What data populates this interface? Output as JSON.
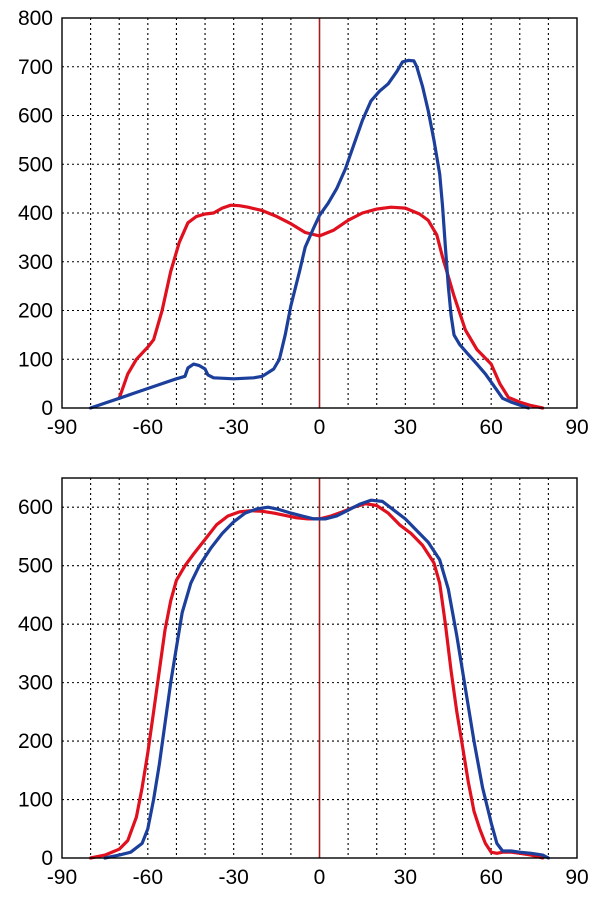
{
  "colors": {
    "red": "#e0101e",
    "blue": "#1c3f9c",
    "zero_line": "#a31e1e",
    "grid": "#000000"
  },
  "chart_data": [
    {
      "type": "line",
      "title": "",
      "xlabel": "",
      "ylabel": "",
      "xlim": [
        -90,
        90
      ],
      "ylim": [
        0,
        800
      ],
      "xticks": [
        -90,
        -60,
        -30,
        0,
        30,
        60,
        90
      ],
      "yticks": [
        0,
        100,
        200,
        300,
        400,
        500,
        600,
        700,
        800
      ],
      "x_grid_step": 10,
      "y_grid_step": 100,
      "grid": true,
      "vertical_line_at_x": 0,
      "series": [
        {
          "color": "red",
          "points": [
            [
              -70,
              20
            ],
            [
              -67,
              70
            ],
            [
              -64,
              100
            ],
            [
              -60,
              125
            ],
            [
              -58,
              140
            ],
            [
              -55,
              200
            ],
            [
              -52,
              280
            ],
            [
              -49,
              340
            ],
            [
              -46,
              380
            ],
            [
              -43,
              393
            ],
            [
              -40,
              398
            ],
            [
              -37,
              400
            ],
            [
              -34,
              410
            ],
            [
              -31,
              416
            ],
            [
              -28,
              415
            ],
            [
              -25,
              412
            ],
            [
              -20,
              405
            ],
            [
              -15,
              393
            ],
            [
              -10,
              378
            ],
            [
              -5,
              360
            ],
            [
              0,
              353
            ],
            [
              5,
              365
            ],
            [
              10,
              385
            ],
            [
              15,
              400
            ],
            [
              20,
              408
            ],
            [
              25,
              412
            ],
            [
              30,
              410
            ],
            [
              35,
              398
            ],
            [
              38,
              385
            ],
            [
              41,
              355
            ],
            [
              43,
              310
            ],
            [
              45,
              270
            ],
            [
              47,
              230
            ],
            [
              49,
              195
            ],
            [
              51,
              160
            ],
            [
              55,
              120
            ],
            [
              60,
              90
            ],
            [
              63,
              50
            ],
            [
              66,
              22
            ],
            [
              70,
              12
            ],
            [
              74,
              5
            ],
            [
              78,
              0
            ]
          ]
        },
        {
          "color": "blue",
          "points": [
            [
              -80,
              0
            ],
            [
              -75,
              10
            ],
            [
              -70,
              20
            ],
            [
              -65,
              30
            ],
            [
              -60,
              40
            ],
            [
              -55,
              50
            ],
            [
              -50,
              60
            ],
            [
              -47,
              65
            ],
            [
              -46,
              82
            ],
            [
              -44,
              90
            ],
            [
              -42,
              87
            ],
            [
              -40,
              80
            ],
            [
              -39,
              68
            ],
            [
              -37,
              62
            ],
            [
              -30,
              60
            ],
            [
              -23,
              62
            ],
            [
              -20,
              65
            ],
            [
              -16,
              80
            ],
            [
              -14,
              100
            ],
            [
              -12,
              150
            ],
            [
              -10,
              210
            ],
            [
              -7,
              280
            ],
            [
              -5,
              330
            ],
            [
              -2,
              370
            ],
            [
              0,
              395
            ],
            [
              3,
              420
            ],
            [
              6,
              450
            ],
            [
              9,
              490
            ],
            [
              12,
              540
            ],
            [
              15,
              590
            ],
            [
              18,
              630
            ],
            [
              21,
              650
            ],
            [
              24,
              665
            ],
            [
              27,
              690
            ],
            [
              29,
              710
            ],
            [
              31,
              713
            ],
            [
              33,
              712
            ],
            [
              34,
              700
            ],
            [
              36,
              660
            ],
            [
              38,
              610
            ],
            [
              40,
              550
            ],
            [
              42,
              480
            ],
            [
              43,
              415
            ],
            [
              44,
              330
            ],
            [
              45,
              250
            ],
            [
              46,
              190
            ],
            [
              47,
              150
            ],
            [
              49,
              130
            ],
            [
              52,
              110
            ],
            [
              55,
              90
            ],
            [
              58,
              70
            ],
            [
              61,
              45
            ],
            [
              64,
              20
            ],
            [
              67,
              12
            ],
            [
              70,
              6
            ],
            [
              73,
              0
            ]
          ]
        }
      ]
    },
    {
      "type": "line",
      "title": "",
      "xlabel": "",
      "ylabel": "",
      "xlim": [
        -90,
        90
      ],
      "ylim": [
        0,
        650
      ],
      "xticks": [
        -90,
        -60,
        -30,
        0,
        30,
        60,
        90
      ],
      "yticks": [
        0,
        100,
        200,
        300,
        400,
        500,
        600
      ],
      "x_grid_step": 10,
      "y_grid_step": 100,
      "grid": true,
      "vertical_line_at_x": 0,
      "series": [
        {
          "color": "red",
          "points": [
            [
              -80,
              0
            ],
            [
              -75,
              5
            ],
            [
              -70,
              15
            ],
            [
              -67,
              30
            ],
            [
              -64,
              70
            ],
            [
              -62,
              120
            ],
            [
              -60,
              180
            ],
            [
              -58,
              250
            ],
            [
              -56,
              320
            ],
            [
              -54,
              390
            ],
            [
              -52,
              440
            ],
            [
              -50,
              475
            ],
            [
              -47,
              500
            ],
            [
              -44,
              520
            ],
            [
              -40,
              545
            ],
            [
              -36,
              570
            ],
            [
              -32,
              585
            ],
            [
              -28,
              592
            ],
            [
              -24,
              594
            ],
            [
              -20,
              593
            ],
            [
              -16,
              590
            ],
            [
              -12,
              586
            ],
            [
              -8,
              582
            ],
            [
              -4,
              580
            ],
            [
              0,
              580
            ],
            [
              4,
              585
            ],
            [
              8,
              592
            ],
            [
              12,
              600
            ],
            [
              16,
              606
            ],
            [
              20,
              603
            ],
            [
              24,
              590
            ],
            [
              28,
              570
            ],
            [
              32,
              555
            ],
            [
              36,
              535
            ],
            [
              40,
              505
            ],
            [
              42,
              470
            ],
            [
              44,
              400
            ],
            [
              46,
              320
            ],
            [
              48,
              250
            ],
            [
              50,
              190
            ],
            [
              52,
              130
            ],
            [
              54,
              80
            ],
            [
              56,
              50
            ],
            [
              58,
              25
            ],
            [
              60,
              10
            ],
            [
              62,
              8
            ],
            [
              64,
              10
            ],
            [
              67,
              10
            ],
            [
              70,
              8
            ],
            [
              74,
              5
            ],
            [
              78,
              0
            ]
          ]
        },
        {
          "color": "blue",
          "points": [
            [
              -75,
              0
            ],
            [
              -70,
              5
            ],
            [
              -66,
              10
            ],
            [
              -62,
              25
            ],
            [
              -60,
              50
            ],
            [
              -58,
              100
            ],
            [
              -56,
              160
            ],
            [
              -54,
              230
            ],
            [
              -52,
              300
            ],
            [
              -50,
              360
            ],
            [
              -48,
              420
            ],
            [
              -45,
              470
            ],
            [
              -42,
              500
            ],
            [
              -38,
              530
            ],
            [
              -34,
              555
            ],
            [
              -30,
              575
            ],
            [
              -26,
              590
            ],
            [
              -22,
              597
            ],
            [
              -18,
              600
            ],
            [
              -14,
              596
            ],
            [
              -10,
              590
            ],
            [
              -6,
              585
            ],
            [
              -2,
              580
            ],
            [
              2,
              580
            ],
            [
              6,
              585
            ],
            [
              10,
              595
            ],
            [
              14,
              605
            ],
            [
              18,
              612
            ],
            [
              22,
              610
            ],
            [
              26,
              595
            ],
            [
              30,
              580
            ],
            [
              34,
              560
            ],
            [
              38,
              540
            ],
            [
              42,
              510
            ],
            [
              45,
              460
            ],
            [
              48,
              380
            ],
            [
              51,
              290
            ],
            [
              54,
              200
            ],
            [
              57,
              120
            ],
            [
              60,
              60
            ],
            [
              62,
              25
            ],
            [
              64,
              12
            ],
            [
              67,
              12
            ],
            [
              70,
              10
            ],
            [
              74,
              8
            ],
            [
              78,
              5
            ],
            [
              80,
              0
            ]
          ]
        }
      ]
    }
  ]
}
